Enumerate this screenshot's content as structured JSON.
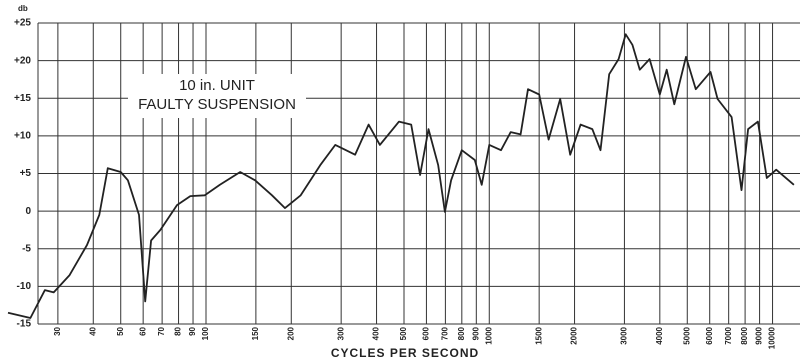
{
  "chart_data": {
    "type": "line",
    "title": [
      "10 in. UNIT",
      "FAULTY SUSPENSION"
    ],
    "y_unit": "db",
    "x_label": "CYCLES PER SECOND",
    "log_x": true,
    "grid": true,
    "xlim": [
      20,
      12500
    ],
    "ylim": [
      -15,
      25
    ],
    "xticks": [
      30,
      40,
      50,
      60,
      70,
      80,
      90,
      100,
      150,
      200,
      300,
      400,
      500,
      600,
      700,
      800,
      900,
      1000,
      1500,
      2000,
      3000,
      4000,
      5000,
      6000,
      7000,
      8000,
      9000,
      10000
    ],
    "yticks": [
      {
        "value": 25,
        "label": "+25"
      },
      {
        "value": 20,
        "label": "+20"
      },
      {
        "value": 15,
        "label": "+15"
      },
      {
        "value": 10,
        "label": "+10"
      },
      {
        "value": 5,
        "label": "+5"
      },
      0,
      -5,
      -10,
      -15
    ],
    "series": [
      {
        "color": "#222222",
        "x": [
          20,
          24,
          27,
          29,
          33,
          38,
          42,
          45,
          50,
          53,
          58,
          61,
          64,
          69,
          79,
          88,
          99,
          112,
          132,
          149,
          171,
          190,
          216,
          253,
          286,
          336,
          375,
          411,
          480,
          530,
          570,
          610,
          660,
          697,
          733,
          800,
          889,
          940,
          1000,
          1100,
          1190,
          1290,
          1370,
          1500,
          1620,
          1780,
          1930,
          2100,
          2310,
          2470,
          2650,
          2860,
          3030,
          3200,
          3400,
          3680,
          4000,
          4230,
          4500,
          4950,
          5360,
          6040,
          6400,
          7170,
          7770,
          8200,
          8880,
          9540,
          10300,
          11900
        ],
        "values": [
          -13.5,
          -14.2,
          -10.5,
          -10.8,
          -8.5,
          -4.5,
          -0.5,
          5.7,
          5.2,
          4.1,
          -0.5,
          -12,
          -3.9,
          -2.5,
          0.8,
          2,
          2.1,
          3.5,
          5.2,
          4.1,
          2.1,
          0.4,
          2.1,
          6.1,
          8.8,
          7.5,
          11.5,
          8.8,
          11.9,
          11.5,
          4.8,
          10.9,
          6.1,
          -0.1,
          4.1,
          8.1,
          6.8,
          3.5,
          8.8,
          8.1,
          10.5,
          10.2,
          16.2,
          15.5,
          9.5,
          14.9,
          7.5,
          11.5,
          10.9,
          8.1,
          18.2,
          20.2,
          23.5,
          22.1,
          18.8,
          20.2,
          15.5,
          18.8,
          14.2,
          20.5,
          16.2,
          18.5,
          14.9,
          12.5,
          2.8,
          10.9,
          11.9,
          4.4,
          5.5,
          3.5
        ]
      }
    ]
  }
}
